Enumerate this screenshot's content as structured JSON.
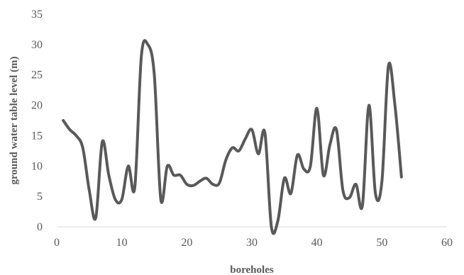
{
  "chart_data": {
    "type": "line",
    "xlabel": "boreholes",
    "ylabel": "ground water table level (m)",
    "xlim": [
      0,
      60
    ],
    "ylim": [
      0,
      35
    ],
    "x_ticks": [
      "0",
      "10",
      "20",
      "30",
      "40",
      "50",
      "60"
    ],
    "y_ticks": [
      "0",
      "5",
      "10",
      "15",
      "20",
      "25",
      "30",
      "35"
    ],
    "grid": false,
    "legend": "none",
    "series": [
      {
        "color": "#595959",
        "x": [
          1,
          2,
          3,
          4,
          5,
          6,
          7,
          8,
          9,
          10,
          11,
          12,
          13,
          14,
          15,
          16,
          17,
          18,
          19,
          20,
          21,
          22,
          23,
          24,
          25,
          26,
          27,
          28,
          29,
          30,
          31,
          32,
          33,
          34,
          35,
          36,
          37,
          38,
          39,
          40,
          41,
          42,
          43,
          44,
          45,
          46,
          47,
          48,
          49,
          50,
          51,
          52,
          53
        ],
        "y": [
          17.5,
          16,
          15,
          13,
          6,
          1.5,
          14,
          8.5,
          4.5,
          4.5,
          10,
          6.5,
          28,
          30,
          25,
          4.5,
          10,
          8.5,
          8.5,
          7,
          6.8,
          7.5,
          8,
          7,
          7.2,
          11,
          13,
          12.5,
          14.5,
          16,
          12,
          15.5,
          0,
          1,
          8,
          5.5,
          11.8,
          9.5,
          10,
          19.5,
          8.5,
          13.5,
          16,
          6,
          4.8,
          7,
          3.5,
          20,
          5.5,
          7.5,
          26.5,
          20,
          8.2
        ]
      }
    ]
  }
}
